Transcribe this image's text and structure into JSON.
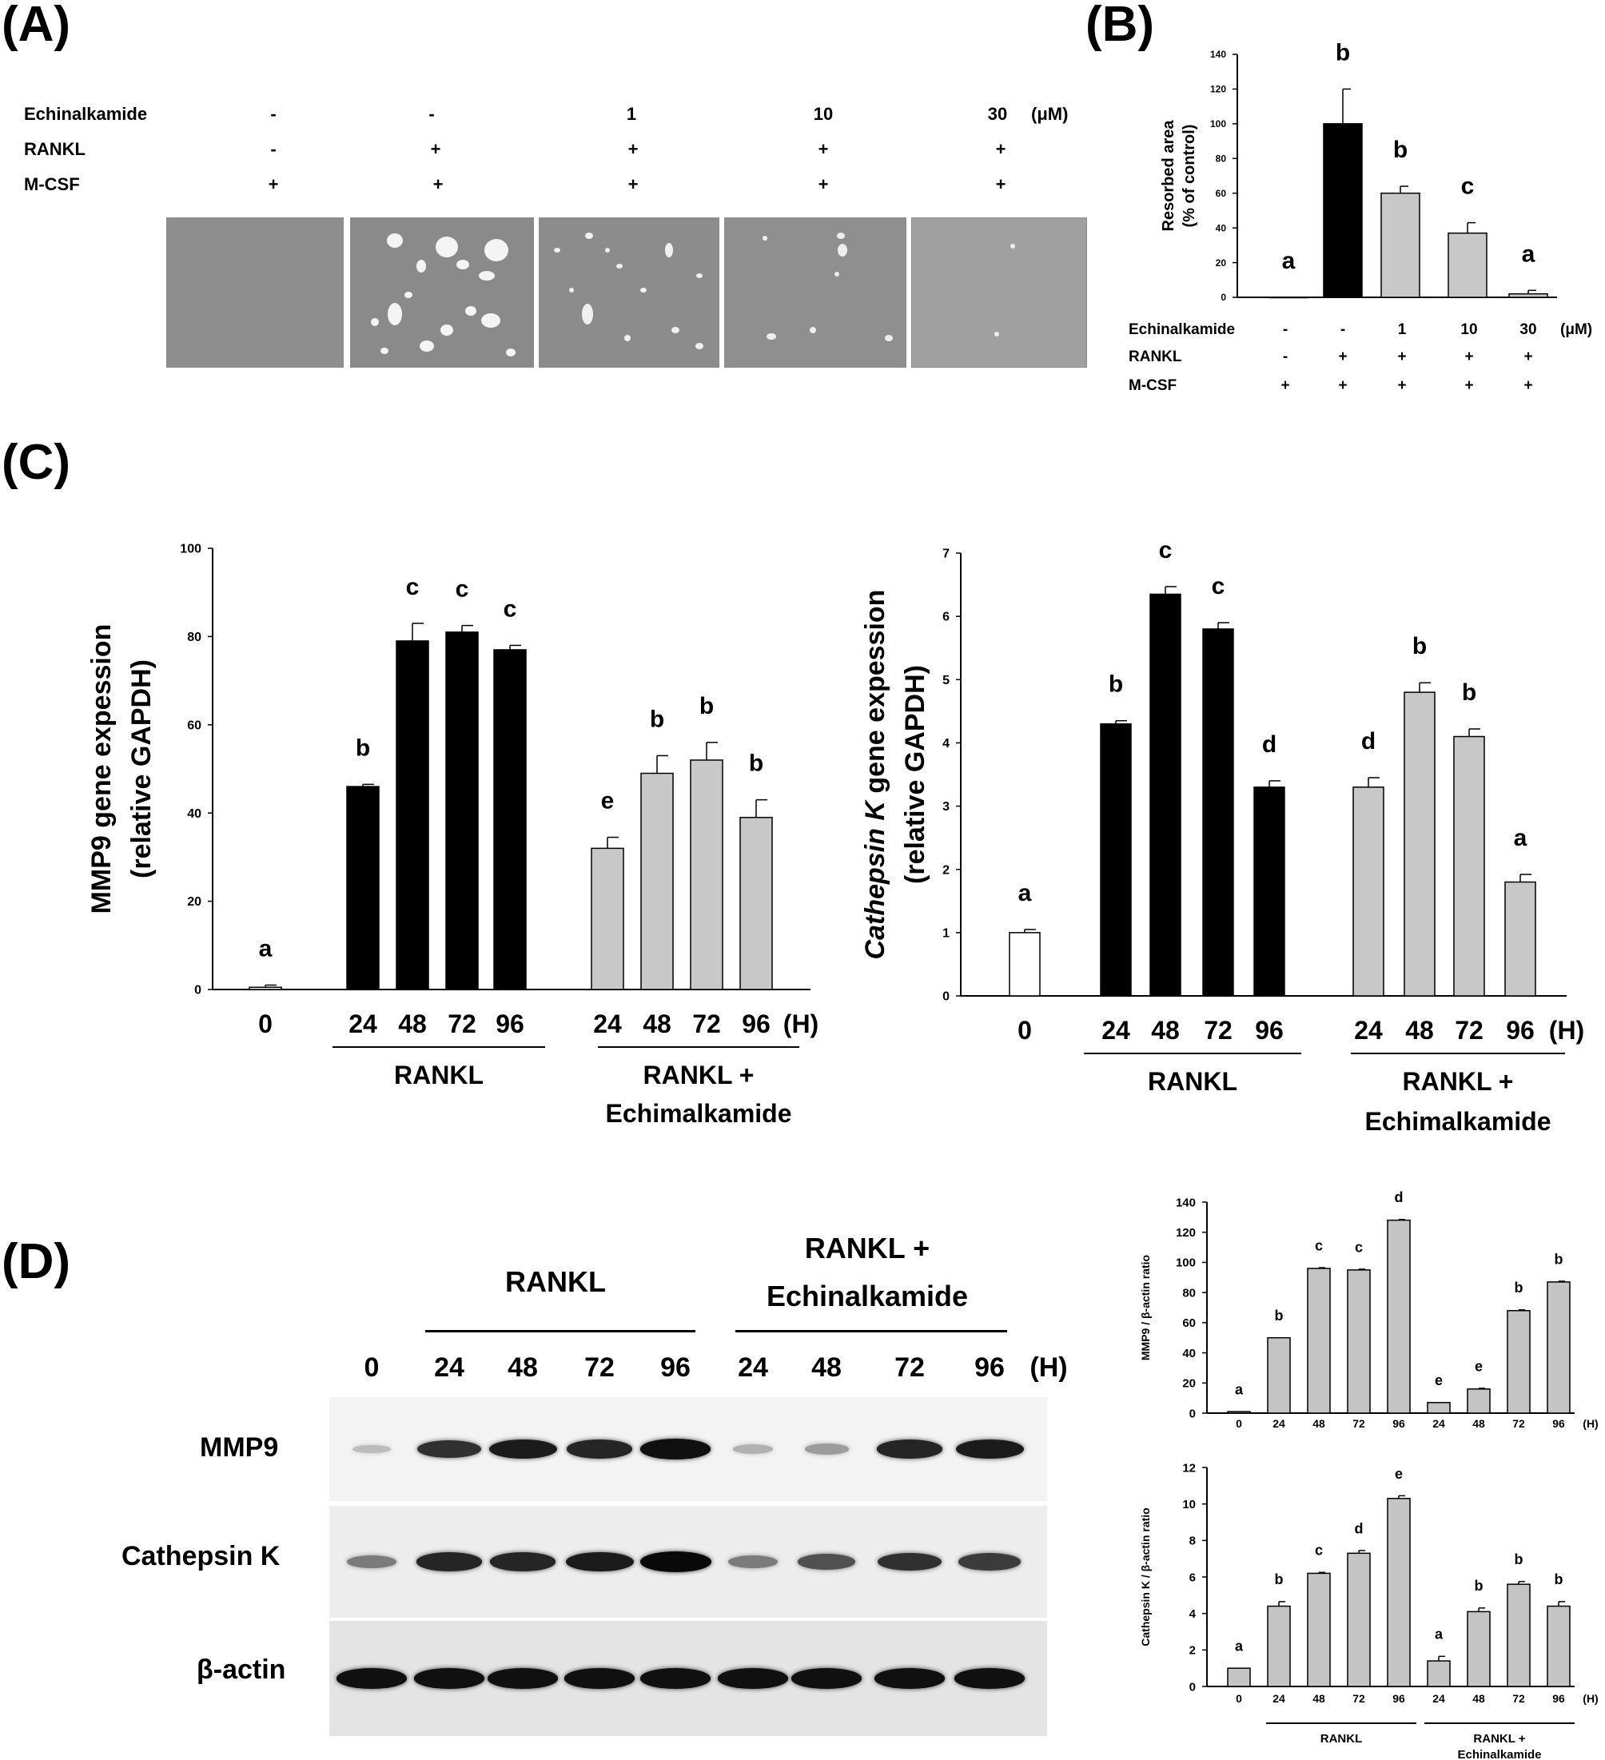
{
  "panels": {
    "a": "(A)",
    "b": "(B)",
    "c": "(C)",
    "d": "(D)"
  },
  "conditions": {
    "rows": [
      {
        "label": "Echinalkamide",
        "values": [
          "-",
          "-",
          "1",
          "10",
          "30"
        ],
        "unit": "(μM)"
      },
      {
        "label": "RANKL",
        "values": [
          "-",
          "+",
          "+",
          "+",
          "+"
        ]
      },
      {
        "label": "M-CSF",
        "values": [
          "+",
          "+",
          "+",
          "+",
          "+"
        ]
      }
    ]
  },
  "chart_data": [
    {
      "id": "resorption",
      "type": "bar",
      "ylabel_line1": "Resorbed area",
      "ylabel_line2": "(% of control)",
      "ylim": [
        0,
        140
      ],
      "yticks": [
        0,
        20,
        40,
        60,
        80,
        100,
        120,
        140
      ],
      "values": [
        0,
        100,
        60,
        37,
        2
      ],
      "errors": [
        0,
        20,
        4,
        6,
        2
      ],
      "letters": [
        "a",
        "b",
        "b",
        "c",
        "a"
      ],
      "colors": [
        "#ffffff",
        "#000000",
        "#c8c8c8",
        "#c8c8c8",
        "#c8c8c8"
      ],
      "conditions": [
        {
          "label": "Echinalkamide",
          "values": [
            "-",
            "-",
            "1",
            "10",
            "30"
          ],
          "unit": "(μM)"
        },
        {
          "label": "RANKL",
          "values": [
            "-",
            "+",
            "+",
            "+",
            "+"
          ]
        },
        {
          "label": "M-CSF",
          "values": [
            "+",
            "+",
            "+",
            "+",
            "+"
          ]
        }
      ]
    },
    {
      "id": "mmp9-qpcr",
      "type": "bar",
      "ylabel_line1": "MMP9 gene expession",
      "ylabel_line2": "(relative GAPDH)",
      "ylim": [
        0,
        100
      ],
      "yticks": [
        0,
        20,
        40,
        60,
        80,
        100
      ],
      "categories": [
        "0",
        "24",
        "48",
        "72",
        "96",
        "24",
        "48",
        "72",
        "96"
      ],
      "values": [
        0.5,
        46,
        79,
        81,
        77,
        32,
        49,
        52,
        39
      ],
      "errors": [
        0.5,
        0.5,
        4,
        1.5,
        1,
        2.5,
        4,
        4,
        4
      ],
      "letters": [
        "a",
        "b",
        "c",
        "c",
        "c",
        "e",
        "b",
        "b",
        "b"
      ],
      "colors": [
        "#ffffff",
        "#000000",
        "#000000",
        "#000000",
        "#000000",
        "#c8c8c8",
        "#c8c8c8",
        "#c8c8c8",
        "#c8c8c8"
      ],
      "unit": "(H)",
      "groups": [
        {
          "label": "RANKL"
        },
        {
          "label": "RANKL +",
          "label2": "Echimalkamide"
        }
      ]
    },
    {
      "id": "ctsk-qpcr",
      "type": "bar",
      "ylabel_italic": "Cathepsin K",
      "ylabel_rest": " gene expession",
      "ylabel_line2": "(relative GAPDH)",
      "ylim": [
        0,
        7
      ],
      "yticks": [
        0,
        1,
        2,
        3,
        4,
        5,
        6,
        7
      ],
      "categories": [
        "0",
        "24",
        "48",
        "72",
        "96",
        "24",
        "48",
        "72",
        "96"
      ],
      "values": [
        1.0,
        4.3,
        6.35,
        5.8,
        3.3,
        3.3,
        4.8,
        4.1,
        1.8
      ],
      "errors": [
        0.05,
        0.05,
        0.12,
        0.1,
        0.1,
        0.15,
        0.15,
        0.12,
        0.12
      ],
      "letters": [
        "a",
        "b",
        "c",
        "c",
        "d",
        "d",
        "b",
        "b",
        "a"
      ],
      "colors": [
        "#ffffff",
        "#000000",
        "#000000",
        "#000000",
        "#000000",
        "#c8c8c8",
        "#c8c8c8",
        "#c8c8c8",
        "#c8c8c8"
      ],
      "unit": "(H)",
      "groups": [
        {
          "label": "RANKL"
        },
        {
          "label": "RANKL +",
          "label2": "Echimalkamide"
        }
      ]
    },
    {
      "id": "mmp9-densitometry",
      "type": "bar",
      "ylabel": "MMP9 / β-actin ratio",
      "ylim": [
        0,
        140
      ],
      "yticks": [
        0,
        20,
        40,
        60,
        80,
        100,
        120,
        140
      ],
      "categories": [
        "0",
        "24",
        "48",
        "72",
        "96",
        "24",
        "48",
        "72",
        "96"
      ],
      "values": [
        1,
        50,
        96,
        95,
        128,
        7,
        16,
        68,
        87
      ],
      "errors": [
        0,
        0,
        0.5,
        0.5,
        0.5,
        0,
        0.5,
        0.5,
        0.5
      ],
      "letters": [
        "a",
        "b",
        "c",
        "c",
        "d",
        "e",
        "e",
        "b",
        "b"
      ],
      "unit": "(H)"
    },
    {
      "id": "ctsk-densitometry",
      "type": "bar",
      "ylabel": "Cathepsin K / β-actin ratio",
      "ylim": [
        0,
        12
      ],
      "yticks": [
        0,
        2,
        4,
        6,
        8,
        10,
        12
      ],
      "categories": [
        "0",
        "24",
        "48",
        "72",
        "96",
        "24",
        "48",
        "72",
        "96"
      ],
      "values": [
        1.0,
        4.4,
        6.2,
        7.3,
        10.3,
        1.4,
        4.1,
        5.6,
        4.4
      ],
      "errors": [
        0,
        0.25,
        0.05,
        0.15,
        0.15,
        0.25,
        0.2,
        0.15,
        0.25
      ],
      "letters": [
        "a",
        "b",
        "c",
        "d",
        "e",
        "a",
        "b",
        "b",
        "b"
      ],
      "unit": "(H)",
      "groups": [
        {
          "label": "RANKL"
        },
        {
          "label": "RANKL +",
          "label2": "Echinalkamide"
        }
      ]
    }
  ],
  "blot": {
    "header_rankl": "RANKL",
    "header_combo1": "RANKL +",
    "header_combo2": "Echinalkamide",
    "times": [
      "0",
      "24",
      "48",
      "72",
      "96",
      "24",
      "48",
      "72",
      "96"
    ],
    "unit": "(H)",
    "rows": [
      {
        "label": "MMP9",
        "intensity": [
          0.15,
          0.8,
          0.9,
          0.85,
          0.95,
          0.2,
          0.3,
          0.85,
          0.9
        ]
      },
      {
        "label": "Cathepsin K",
        "intensity": [
          0.45,
          0.85,
          0.85,
          0.9,
          0.98,
          0.45,
          0.65,
          0.8,
          0.75
        ]
      },
      {
        "label": "β-actin",
        "intensity": [
          0.95,
          0.95,
          0.95,
          0.95,
          0.95,
          0.95,
          0.95,
          0.95,
          0.95
        ]
      }
    ]
  }
}
